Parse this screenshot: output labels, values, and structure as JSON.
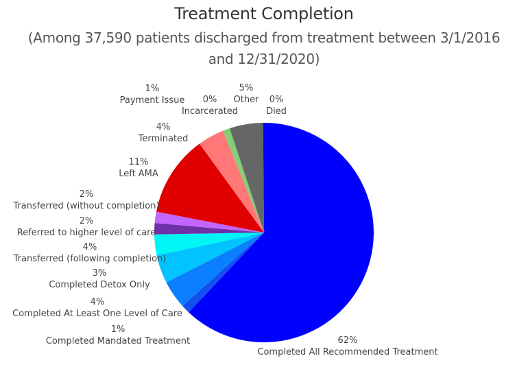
{
  "header": {
    "title": "Treatment Completion",
    "subtitle_line1": "(Among 37,590 patients discharged from treatment between 3/1/2016",
    "subtitle_line2": "and 12/31/2020)"
  },
  "chart_data": {
    "type": "pie",
    "title": "Treatment Completion",
    "subtitle": "(Among 37,590 patients discharged from treatment between 3/1/2016 and 12/31/2020)",
    "total_patients": 37590,
    "start_angle": "12 o'clock, slices ordered clockwise",
    "slices": [
      {
        "label": "Completed All Recommended Treatment",
        "pct_label": "62%",
        "value": 62,
        "color": "#0000FF"
      },
      {
        "label": "Completed Mandated Treatment",
        "pct_label": "1%",
        "value": 1,
        "color": "#1450F0"
      },
      {
        "label": "Completed At Least One Level of Care",
        "pct_label": "4%",
        "value": 4,
        "color": "#0A80FF"
      },
      {
        "label": "Completed Detox Only",
        "pct_label": "3%",
        "value": 3,
        "color": "#00C4FF"
      },
      {
        "label": "Transferred (following completion)",
        "pct_label": "4%",
        "value": 4,
        "color": "#00F5F5"
      },
      {
        "label": "Referred to higher level of care",
        "pct_label": "2%",
        "value": 2,
        "color": "#7030A8"
      },
      {
        "label": "Transferred (without completion)",
        "pct_label": "2%",
        "value": 2,
        "color": "#C266FF"
      },
      {
        "label": "Left AMA",
        "pct_label": "11%",
        "value": 11,
        "color": "#E00000"
      },
      {
        "label": "Terminated",
        "pct_label": "4%",
        "value": 4,
        "color": "#FF7777"
      },
      {
        "label": "Payment Issue",
        "pct_label": "1%",
        "value": 1,
        "color": "#88CC77"
      },
      {
        "label": "Incarcerated",
        "pct_label": "0%",
        "value": 0,
        "color": "#2E8B57"
      },
      {
        "label": "Other",
        "pct_label": "5%",
        "value": 5,
        "color": "#666666"
      },
      {
        "label": "Died",
        "pct_label": "0%",
        "value": 0,
        "color": "#222222"
      }
    ],
    "legend": "none (direct labels)"
  }
}
